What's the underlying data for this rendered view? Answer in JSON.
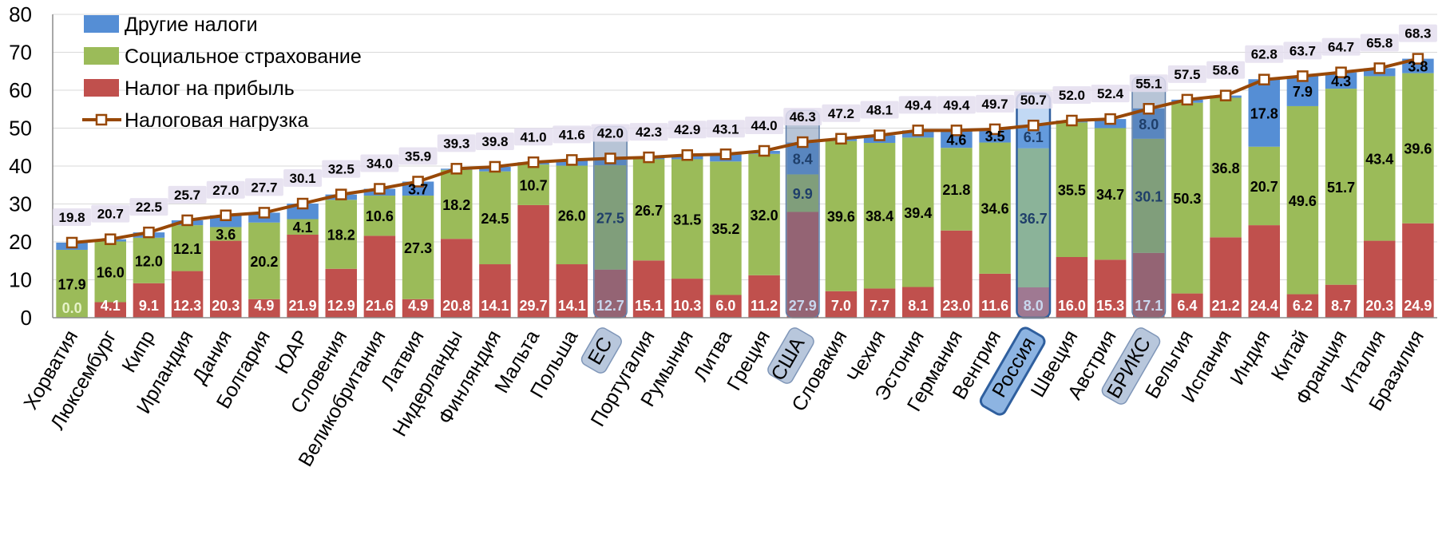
{
  "chart_data": {
    "type": "bar",
    "stacked": true,
    "ylim": [
      0,
      80
    ],
    "yticks": [
      0,
      10,
      20,
      30,
      40,
      50,
      60,
      70,
      80
    ],
    "grid": true,
    "legend_position": "top-left",
    "categories": [
      "Хорватия",
      "Люксембург",
      "Кипр",
      "Ирландия",
      "Дания",
      "Болгария",
      "ЮАР",
      "Словения",
      "Великобритания",
      "Латвия",
      "Нидерланды",
      "Финляндия",
      "Мальта",
      "Польша",
      "ЕС",
      "Португалия",
      "Румыния",
      "Литва",
      "Греция",
      "США",
      "Словакия",
      "Чехия",
      "Эстония",
      "Германия",
      "Венгрия",
      "Россия",
      "Швеция",
      "Австрия",
      "БРИКС",
      "Бельгия",
      "Испания",
      "Индия",
      "Китай",
      "Франция",
      "Италия",
      "Бразилия"
    ],
    "highlighted_categories": [
      "ЕС",
      "США",
      "Россия",
      "БРИКС"
    ],
    "series": [
      {
        "name": "Налог на прибыль",
        "color": "#c0504d",
        "values": [
          0.0,
          4.1,
          9.1,
          12.3,
          20.3,
          4.9,
          21.9,
          12.9,
          21.6,
          4.9,
          20.8,
          14.1,
          29.7,
          14.1,
          12.7,
          15.1,
          10.3,
          6.0,
          11.2,
          27.9,
          7.0,
          7.7,
          8.1,
          23.0,
          11.6,
          8.0,
          16.0,
          15.3,
          17.1,
          6.4,
          21.2,
          24.4,
          6.2,
          8.7,
          20.3,
          24.9
        ]
      },
      {
        "name": "Социальное страхование",
        "color": "#9bbb59",
        "values": [
          17.9,
          16.0,
          12.0,
          12.1,
          3.6,
          20.2,
          4.1,
          18.2,
          10.6,
          27.3,
          18.2,
          24.5,
          10.7,
          26.0,
          27.5,
          26.7,
          31.5,
          35.2,
          32.0,
          9.9,
          39.6,
          38.4,
          39.4,
          21.8,
          34.6,
          36.7,
          35.5,
          34.7,
          30.1,
          50.3,
          36.8,
          20.7,
          49.6,
          51.7,
          43.4,
          39.6
        ]
      },
      {
        "name": "Другие налоги",
        "color": "#558ed5",
        "values": [
          1.9,
          0.6,
          1.4,
          1.3,
          3.1,
          2.6,
          4.1,
          1.4,
          1.8,
          3.7,
          0.3,
          1.2,
          0.6,
          1.5,
          1.8,
          0.5,
          1.1,
          1.9,
          0.8,
          8.4,
          0.6,
          2.0,
          1.9,
          4.6,
          3.5,
          6.1,
          0.5,
          2.4,
          8.0,
          0.8,
          0.6,
          17.8,
          7.9,
          4.3,
          2.1,
          3.8
        ]
      }
    ],
    "segment_labels": [
      [
        "0.0",
        "17.9",
        ""
      ],
      [
        "4.1",
        "16.0",
        ""
      ],
      [
        "9.1",
        "12.0",
        ""
      ],
      [
        "12.3",
        "12.1",
        ""
      ],
      [
        "20.3",
        "3.6",
        ""
      ],
      [
        "4.9",
        "20.2",
        ""
      ],
      [
        "21.9",
        "4.1",
        ""
      ],
      [
        "12.9",
        "18.2",
        ""
      ],
      [
        "21.6",
        "10.6",
        ""
      ],
      [
        "4.9",
        "27.3",
        "3.7"
      ],
      [
        "20.8",
        "18.2",
        ""
      ],
      [
        "14.1",
        "24.5",
        ""
      ],
      [
        "29.7",
        "10.7",
        ""
      ],
      [
        "14.1",
        "26.0",
        ""
      ],
      [
        "12.7",
        "27.5",
        ""
      ],
      [
        "15.1",
        "26.7",
        ""
      ],
      [
        "10.3",
        "31.5",
        ""
      ],
      [
        "6.0",
        "35.2",
        ""
      ],
      [
        "11.2",
        "32.0",
        ""
      ],
      [
        "27.9",
        "9.9",
        "8.4"
      ],
      [
        "7.0",
        "39.6",
        ""
      ],
      [
        "7.7",
        "38.4",
        ""
      ],
      [
        "8.1",
        "39.4",
        ""
      ],
      [
        "23.0",
        "21.8",
        "4.6"
      ],
      [
        "11.6",
        "34.6",
        "3.5"
      ],
      [
        "8.0",
        "36.7",
        "6.1"
      ],
      [
        "16.0",
        "35.5",
        ""
      ],
      [
        "15.3",
        "34.7",
        ""
      ],
      [
        "17.1",
        "30.1",
        "8.0"
      ],
      [
        "6.4",
        "50.3",
        ""
      ],
      [
        "21.2",
        "36.8",
        ""
      ],
      [
        "24.4",
        "20.7",
        "17.8"
      ],
      [
        "6.2",
        "49.6",
        "7.9"
      ],
      [
        "8.7",
        "51.7",
        "4.3"
      ],
      [
        "20.3",
        "43.4",
        ""
      ],
      [
        "24.9",
        "39.6",
        "3.8"
      ]
    ],
    "line": {
      "name": "Налоговая нагрузка",
      "color": "#984807",
      "values": [
        19.8,
        20.7,
        22.5,
        25.7,
        27.0,
        27.7,
        30.1,
        32.5,
        34.0,
        35.9,
        39.3,
        39.8,
        41.0,
        41.6,
        42.0,
        42.3,
        42.9,
        43.1,
        44.0,
        46.3,
        47.2,
        48.1,
        49.4,
        49.4,
        49.7,
        50.7,
        52.0,
        52.4,
        55.1,
        57.5,
        58.6,
        62.8,
        63.7,
        64.7,
        65.8,
        68.3
      ],
      "labels": [
        "19.8",
        "20.7",
        "22.5",
        "25.7",
        "27.0",
        "27.7",
        "30.1",
        "32.5",
        "34.0",
        "35.9",
        "39.3",
        "39.8",
        "41.0",
        "41.6",
        "42.0",
        "42.3",
        "42.9",
        "43.1",
        "44.0",
        "46.3",
        "47.2",
        "48.1",
        "49.4",
        "49.4",
        "49.7",
        "50.7",
        "52.0",
        "52.4",
        "55.1",
        "57.5",
        "58.6",
        "62.8",
        "63.7",
        "64.7",
        "65.8",
        "68.3"
      ]
    },
    "legend": [
      {
        "label": "Другие налоги",
        "kind": "bar",
        "color": "#558ed5"
      },
      {
        "label": "Социальное страхование",
        "kind": "bar",
        "color": "#9bbb59"
      },
      {
        "label": "Налог на прибыль",
        "kind": "bar",
        "color": "#c0504d"
      },
      {
        "label": "Налоговая нагрузка",
        "kind": "line",
        "color": "#984807"
      }
    ]
  }
}
